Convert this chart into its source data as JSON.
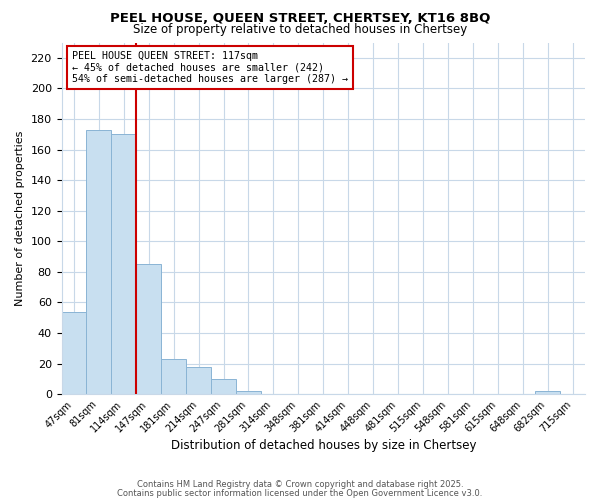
{
  "title": "PEEL HOUSE, QUEEN STREET, CHERTSEY, KT16 8BQ",
  "subtitle": "Size of property relative to detached houses in Chertsey",
  "xlabel": "Distribution of detached houses by size in Chertsey",
  "ylabel": "Number of detached properties",
  "bar_labels": [
    "47sqm",
    "81sqm",
    "114sqm",
    "147sqm",
    "181sqm",
    "214sqm",
    "247sqm",
    "281sqm",
    "314sqm",
    "348sqm",
    "381sqm",
    "414sqm",
    "448sqm",
    "481sqm",
    "515sqm",
    "548sqm",
    "581sqm",
    "615sqm",
    "648sqm",
    "682sqm",
    "715sqm"
  ],
  "bar_values": [
    54,
    173,
    170,
    85,
    23,
    18,
    10,
    2,
    0,
    0,
    0,
    0,
    0,
    0,
    0,
    0,
    0,
    0,
    0,
    2,
    0
  ],
  "bar_color": "#c8dff0",
  "bar_edgecolor": "#8ab4d4",
  "vline_idx": 2,
  "vline_color": "#cc0000",
  "annotation_title": "PEEL HOUSE QUEEN STREET: 117sqm",
  "annotation_line1": "← 45% of detached houses are smaller (242)",
  "annotation_line2": "54% of semi-detached houses are larger (287) →",
  "annotation_box_edgecolor": "#cc0000",
  "ylim": [
    0,
    230
  ],
  "yticks": [
    0,
    20,
    40,
    60,
    80,
    100,
    120,
    140,
    160,
    180,
    200,
    220
  ],
  "footer1": "Contains HM Land Registry data © Crown copyright and database right 2025.",
  "footer2": "Contains public sector information licensed under the Open Government Licence v3.0.",
  "bg_color": "#ffffff",
  "grid_color": "#c8d8e8"
}
